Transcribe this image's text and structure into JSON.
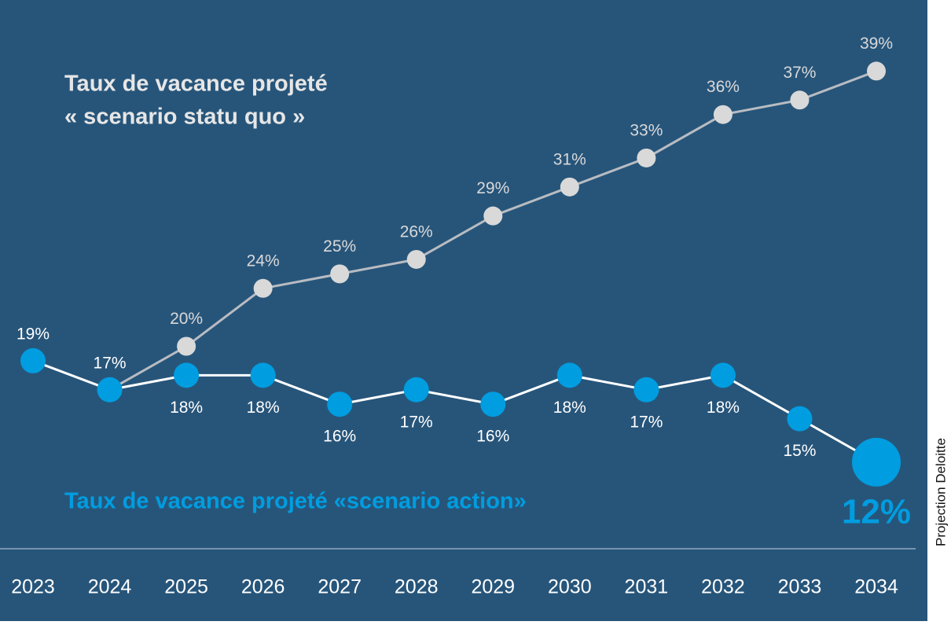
{
  "chart_data": {
    "type": "line",
    "annotations": {
      "statu_quo": [
        "Taux de vacance projeté",
        "« scenario statu quo »"
      ],
      "action": "Taux de vacance projeté «scenario action»"
    },
    "source": "Projection Deloitte",
    "x": [
      2023,
      2024,
      2025,
      2026,
      2027,
      2028,
      2029,
      2030,
      2031,
      2032,
      2033,
      2034
    ],
    "xlim": [
      2023,
      2034
    ],
    "ylim": [
      0,
      40
    ],
    "series": [
      {
        "name": "scenario statu quo",
        "color": "#d9d9d9",
        "line_color": "#b8bcc2",
        "values": [
          null,
          17,
          20,
          24,
          25,
          26,
          29,
          31,
          33,
          36,
          37,
          39
        ],
        "value_labels": [
          null,
          null,
          "20%",
          "24%",
          "25%",
          "26%",
          "29%",
          "31%",
          "33%",
          "36%",
          "37%",
          "39%"
        ]
      },
      {
        "name": "scenario action",
        "color": "#009de0",
        "line_color": "#ffffff",
        "values": [
          19,
          17,
          18,
          18,
          16,
          17,
          16,
          18,
          17,
          18,
          15,
          12
        ],
        "value_labels": [
          "19%",
          "17%",
          "18%",
          "18%",
          "16%",
          "17%",
          "16%",
          "18%",
          "17%",
          "18%",
          "15%",
          "12%"
        ]
      }
    ]
  }
}
